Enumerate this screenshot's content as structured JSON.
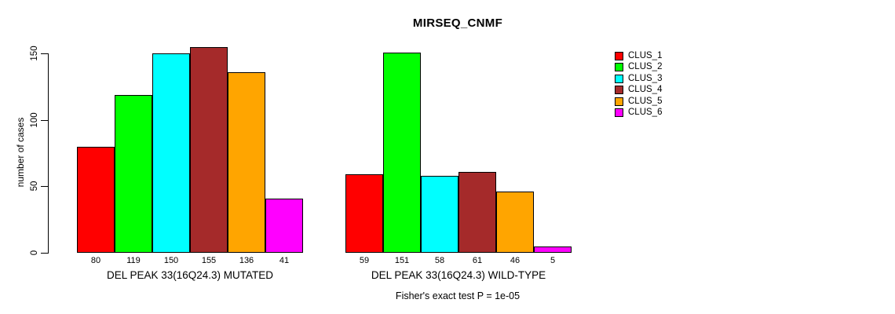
{
  "chart_data": {
    "type": "bar",
    "title": "MIRSEQ_CNMF",
    "ylabel": "number of cases",
    "xlabel": "",
    "yticks": [
      0,
      50,
      100,
      150
    ],
    "ylim": [
      0,
      155
    ],
    "grid": false,
    "legend_position": "right-inside",
    "categories": [
      "DEL PEAK 33(16Q24.3) MUTATED",
      "DEL PEAK 33(16Q24.3) WILD-TYPE"
    ],
    "series": [
      {
        "name": "CLUS_1",
        "color": "#ff0000",
        "values": [
          80,
          59
        ]
      },
      {
        "name": "CLUS_2",
        "color": "#00ff00",
        "values": [
          119,
          151
        ]
      },
      {
        "name": "CLUS_3",
        "color": "#00ffff",
        "values": [
          150,
          58
        ]
      },
      {
        "name": "CLUS_4",
        "color": "#a52a2a",
        "values": [
          155,
          61
        ]
      },
      {
        "name": "CLUS_5",
        "color": "#ffa500",
        "values": [
          136,
          46
        ]
      },
      {
        "name": "CLUS_6",
        "color": "#ff00ff",
        "values": [
          41,
          5
        ]
      }
    ],
    "bar_value_labels": [
      [
        80,
        119,
        150,
        155,
        136,
        41
      ],
      [
        59,
        151,
        58,
        61,
        46,
        5
      ]
    ],
    "annotation": "Fisher's exact test P = 1e-05"
  }
}
